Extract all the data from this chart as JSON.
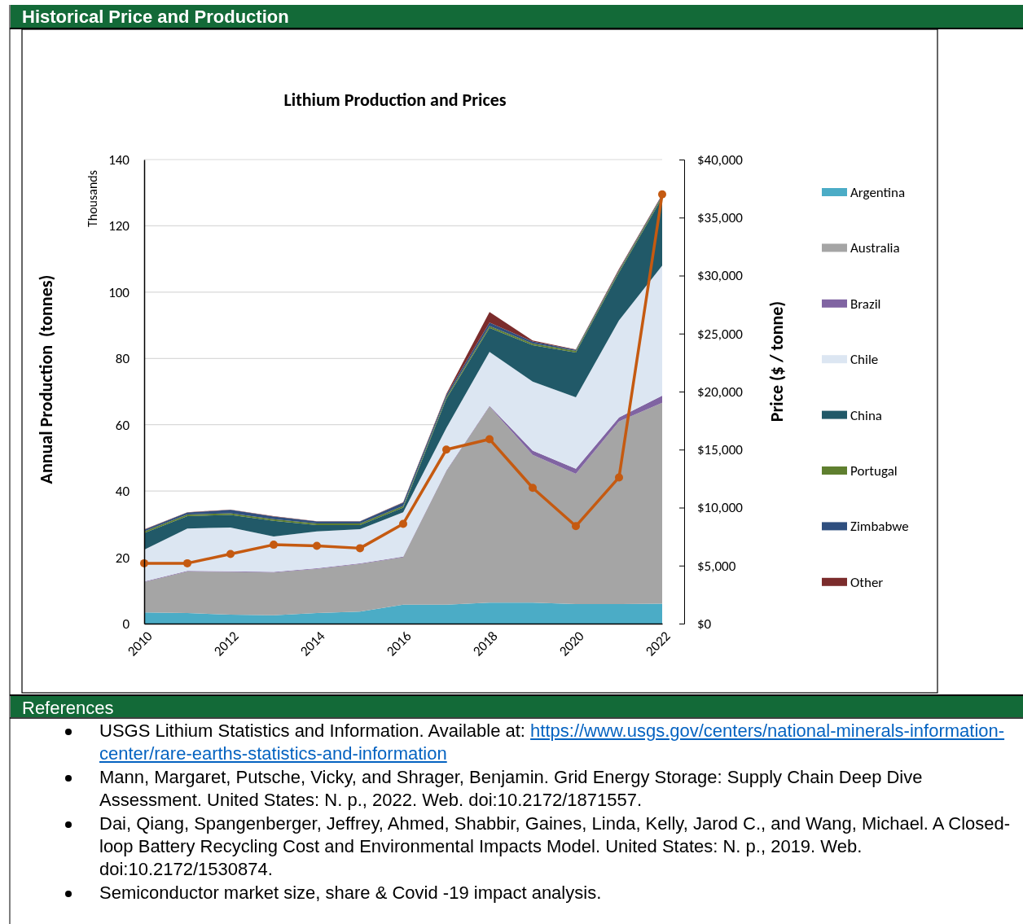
{
  "chart_data": {
    "type": "area",
    "title": "Lithium Production and Prices",
    "ylabel": "Annual Production  (tonnes)",
    "y2label": "Price ($ / tonne)",
    "annotations": [
      "Historical Price and Production",
      "Thousands",
      "References",
      "USGS Lithium Statistics and Information. Available at: https://www.usgs.gov/centers/national-minerals-information-center/rare-earths-statistics-and-information",
      "Mann, Margaret, Putsche, Vicky, and Shrager, Benjamin. Grid Energy Storage: Supply Chain Deep Dive Assessment. United States: N. p., 2022. Web. doi:10.2172/1871557.",
      "Dai, Qiang, Spangenberger, Jeffrey, Ahmed, Shabbir, Gaines, Linda, Kelly, Jarod C., and Wang, Michael. A Closed-loop Battery Recycling Cost and Environmental Impacts Model. United States: N. p., 2019. Web. doi:10.2172/1530874.",
      "Semiconductor market size, share & Covid -19 impact analysis."
    ],
    "x": [
      2010,
      2011,
      2012,
      2013,
      2014,
      2015,
      2016,
      2017,
      2018,
      2019,
      2020,
      2021,
      2022
    ],
    "xlim": [
      2010,
      2022
    ],
    "xticks": [
      2010,
      2012,
      2014,
      2016,
      2018,
      2020,
      2022
    ],
    "ylim": [
      0,
      140
    ],
    "yticks": [
      0,
      20,
      40,
      60,
      80,
      100,
      120,
      140
    ],
    "y2lim": [
      0,
      40000
    ],
    "y2ticks": [
      {
        "value": 0,
        "label": "$0"
      },
      {
        "value": 5000,
        "label": "$5,000"
      },
      {
        "value": 10000,
        "label": "$10,000"
      },
      {
        "value": 15000,
        "label": "$15,000"
      },
      {
        "value": 20000,
        "label": "$20,000"
      },
      {
        "value": 25000,
        "label": "$25,000"
      },
      {
        "value": 30000,
        "label": "$30,000"
      },
      {
        "value": 35000,
        "label": "$35,000"
      },
      {
        "value": 40000,
        "label": "$40,000"
      }
    ],
    "stacked": true,
    "grid": "y",
    "legend": "right",
    "series": [
      {
        "name": "Argentina",
        "color": "#4bacc6",
        "values": [
          3.4,
          3.2,
          2.7,
          2.5,
          3.2,
          3.6,
          5.7,
          5.7,
          6.3,
          6.3,
          5.9,
          5.9,
          6.0
        ]
      },
      {
        "name": "Australia",
        "color": "#a5a5a5",
        "values": [
          9.1,
          12.5,
          12.9,
          12.9,
          13.3,
          14.4,
          14.3,
          40.3,
          59.2,
          44.6,
          39.3,
          55.1,
          60.6
        ]
      },
      {
        "name": "Brazil",
        "color": "#8064a2",
        "values": [
          0.2,
          0.2,
          0.2,
          0.2,
          0.2,
          0.2,
          0.2,
          0.2,
          0.2,
          1.3,
          1.5,
          1.2,
          2.2
        ]
      },
      {
        "name": "Chile",
        "color": "#dce6f2",
        "values": [
          9.6,
          12.8,
          13.2,
          10.7,
          11.1,
          10.3,
          13.4,
          12.8,
          16.3,
          20.8,
          21.6,
          29.3,
          39.2
        ]
      },
      {
        "name": "China",
        "color": "#215968",
        "values": [
          5.0,
          3.7,
          3.8,
          4.7,
          1.9,
          1.2,
          1.4,
          8.8,
          7.2,
          11.0,
          13.5,
          14.4,
          20.5
        ]
      },
      {
        "name": "Portugal",
        "color": "#5f7f2f",
        "values": [
          0.5,
          0.5,
          0.5,
          0.5,
          0.5,
          0.5,
          0.5,
          0.5,
          0.6,
          0.5,
          0.5,
          0.5,
          0.5
        ]
      },
      {
        "name": "Zimbabwe",
        "color": "#2f4f7f",
        "values": [
          0.5,
          0.6,
          1.0,
          0.8,
          0.6,
          0.6,
          1.0,
          0.7,
          1.0,
          0.6,
          0.3,
          0.3,
          0.3
        ]
      },
      {
        "name": "Other",
        "color": "#7b2c2c",
        "values": [
          0.1,
          0.1,
          0.1,
          0.1,
          0.1,
          0.1,
          0.1,
          0.3,
          3.2,
          0.3,
          0.1,
          0.3,
          0.2
        ]
      },
      {
        "type": "line",
        "axis": "y2",
        "marker": "circle",
        "color": "#c55a11",
        "values": [
          5200,
          5200,
          6000,
          6800,
          6700,
          6500,
          8600,
          15000,
          15900,
          11700,
          8400,
          12600,
          37000
        ]
      }
    ]
  }
}
